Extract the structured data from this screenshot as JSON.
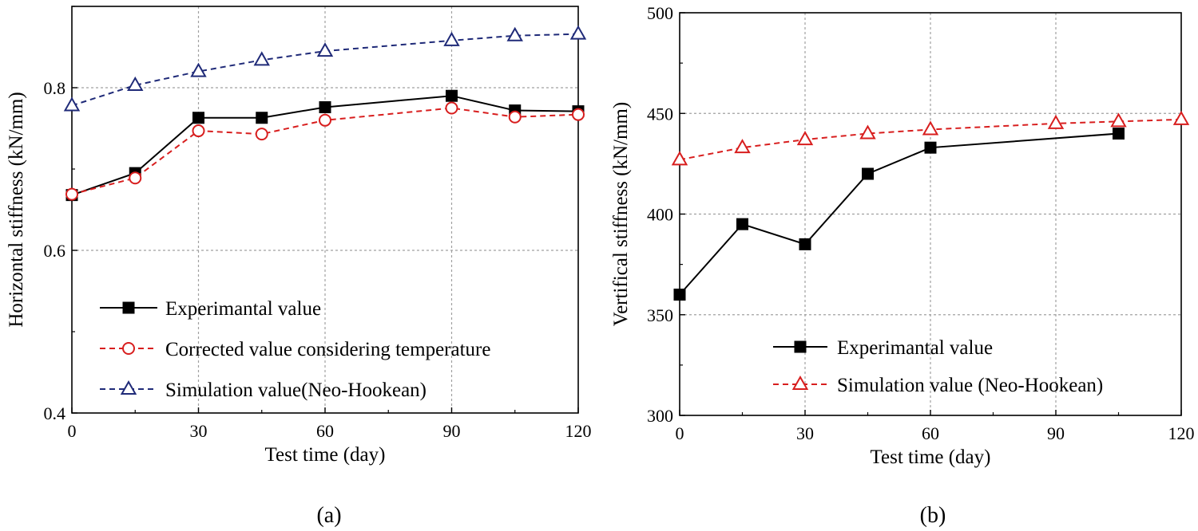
{
  "colors": {
    "experimental": "#000000",
    "corrected": "#d81e1e",
    "simulation_a": "#1f2a78",
    "simulation_b": "#d81e1e",
    "grid": "#a0a0a0"
  },
  "chart_data": [
    {
      "type": "line",
      "panel_label": "(a)",
      "xlabel": "Test time (day)",
      "ylabel": "Horizontal stiffness (kN/mm)",
      "xlim": [
        0,
        120
      ],
      "ylim": [
        0.4,
        0.9
      ],
      "xticks": [
        0,
        30,
        60,
        90,
        120
      ],
      "yticks": [
        0.4,
        0.6,
        0.8
      ],
      "ytick_labels": [
        "0.4",
        "0.6",
        "0.8"
      ],
      "grid": true,
      "legend_position": "lower-left",
      "series": [
        {
          "name": "Experimantal value",
          "marker": "filled-square",
          "line": "solid",
          "color": "#000000",
          "x": [
            0,
            15,
            30,
            45,
            60,
            90,
            105,
            120
          ],
          "y": [
            0.668,
            0.695,
            0.763,
            0.763,
            0.776,
            0.79,
            0.772,
            0.771
          ]
        },
        {
          "name": "Corrected value considering temperature",
          "marker": "open-circle",
          "line": "dashed",
          "color": "#d81e1e",
          "x": [
            0,
            15,
            30,
            45,
            60,
            90,
            105,
            120
          ],
          "y": [
            0.669,
            0.689,
            0.747,
            0.743,
            0.76,
            0.775,
            0.764,
            0.767
          ]
        },
        {
          "name": "Simulation value(Neo-Hookean)",
          "marker": "open-triangle",
          "line": "dashed",
          "color": "#1f2a78",
          "x": [
            0,
            15,
            30,
            45,
            60,
            90,
            105,
            120
          ],
          "y": [
            0.778,
            0.803,
            0.82,
            0.834,
            0.845,
            0.858,
            0.864,
            0.866
          ]
        }
      ]
    },
    {
      "type": "line",
      "panel_label": "(b)",
      "xlabel": "Test time (day)",
      "ylabel": "Vertifical stiffness (kN/mm)",
      "xlim": [
        0,
        120
      ],
      "ylim": [
        300,
        500
      ],
      "xticks": [
        0,
        30,
        60,
        90,
        120
      ],
      "yticks": [
        300,
        350,
        400,
        450,
        500
      ],
      "ytick_labels": [
        "300",
        "350",
        "400",
        "450",
        "500"
      ],
      "grid": true,
      "legend_position": "lower-right",
      "series": [
        {
          "name": "Experimantal value",
          "marker": "filled-square",
          "line": "solid",
          "color": "#000000",
          "x": [
            0,
            15,
            30,
            45,
            60,
            105
          ],
          "y": [
            360,
            395,
            385,
            420,
            433,
            440
          ]
        },
        {
          "name": "Simulation value (Neo-Hookean)",
          "marker": "open-triangle",
          "line": "dashed",
          "color": "#d81e1e",
          "x": [
            0,
            15,
            30,
            45,
            60,
            90,
            105,
            120
          ],
          "y": [
            427,
            433,
            437,
            440,
            442,
            445,
            446,
            447
          ]
        }
      ]
    }
  ]
}
